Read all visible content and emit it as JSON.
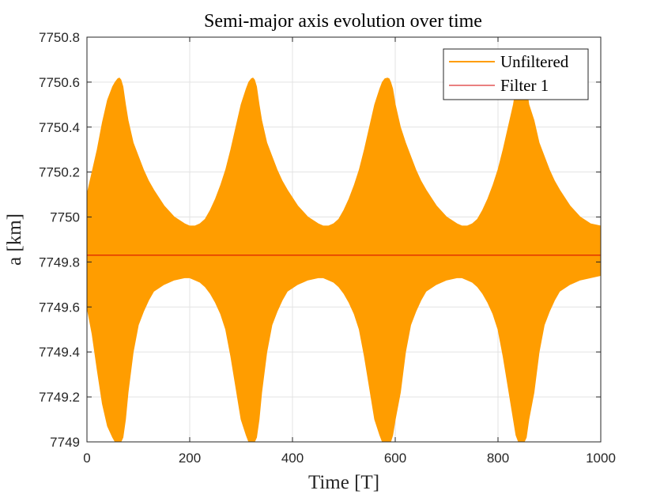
{
  "colors": {
    "unfiltered": "#FF9D00",
    "filter1": "#D40000",
    "grid": "#E3E3E3",
    "axis": "#262626"
  },
  "chart_data": {
    "type": "line",
    "title": "Semi-major axis evolution over time",
    "xlabel": "Time [T]",
    "ylabel": "a [km]",
    "xlim": [
      0,
      1000
    ],
    "ylim": [
      7749,
      7750.8
    ],
    "xticks": [
      0,
      200,
      400,
      600,
      800,
      1000
    ],
    "xtick_labels": [
      "0",
      "200",
      "400",
      "600",
      "800",
      "1000"
    ],
    "yticks": [
      7749,
      7749.2,
      7749.4,
      7749.6,
      7749.8,
      7750,
      7750.2,
      7750.4,
      7750.6,
      7750.8
    ],
    "ytick_labels": [
      "7749",
      "7749.2",
      "7749.4",
      "7749.6",
      "7749.8",
      "7750",
      "7750.2",
      "7750.4",
      "7750.6",
      "7750.8"
    ],
    "grid": true,
    "legend_position": "top-right",
    "series": [
      {
        "name": "Unfiltered",
        "style": "band",
        "x": [
          0,
          10,
          20,
          30,
          40,
          50,
          55,
          60,
          63,
          66,
          70,
          75,
          80,
          90,
          100,
          110,
          120,
          130,
          150,
          170,
          190,
          200,
          210,
          220,
          230,
          240,
          250,
          260,
          270,
          280,
          290,
          300,
          310,
          315,
          320,
          323,
          326,
          330,
          335,
          340,
          350,
          360,
          370,
          380,
          390,
          410,
          430,
          450,
          460,
          470,
          480,
          490,
          500,
          510,
          520,
          530,
          540,
          550,
          560,
          570,
          575,
          580,
          585,
          588,
          591,
          595,
          600,
          610,
          620,
          630,
          640,
          650,
          660,
          680,
          700,
          720,
          730,
          740,
          750,
          760,
          770,
          780,
          790,
          800,
          810,
          820,
          830,
          835,
          840,
          845,
          848,
          851,
          855,
          860,
          870,
          880,
          890,
          900,
          910,
          920,
          940,
          960,
          980,
          1000
        ],
        "upper": [
          7750.1,
          7750.2,
          7750.3,
          7750.42,
          7750.52,
          7750.58,
          7750.6,
          7750.615,
          7750.618,
          7750.61,
          7750.58,
          7750.5,
          7750.43,
          7750.33,
          7750.27,
          7750.21,
          7750.16,
          7750.12,
          7750.05,
          7750,
          7749.97,
          7749.96,
          7749.96,
          7749.97,
          7749.99,
          7750.03,
          7750.08,
          7750.14,
          7750.21,
          7750.3,
          7750.4,
          7750.5,
          7750.57,
          7750.6,
          7750.615,
          7750.618,
          7750.61,
          7750.58,
          7750.5,
          7750.43,
          7750.33,
          7750.27,
          7750.21,
          7750.16,
          7750.12,
          7750.05,
          7750,
          7749.97,
          7749.96,
          7749.96,
          7749.97,
          7749.99,
          7750.03,
          7750.08,
          7750.14,
          7750.21,
          7750.3,
          7750.4,
          7750.5,
          7750.57,
          7750.6,
          7750.615,
          7750.618,
          7750.615,
          7750.6,
          7750.57,
          7750.5,
          7750.4,
          7750.33,
          7750.27,
          7750.21,
          7750.16,
          7750.12,
          7750.05,
          7750,
          7749.97,
          7749.96,
          7749.96,
          7749.97,
          7749.99,
          7750.03,
          7750.08,
          7750.14,
          7750.21,
          7750.3,
          7750.4,
          7750.5,
          7750.57,
          7750.6,
          7750.615,
          7750.618,
          7750.61,
          7750.58,
          7750.5,
          7750.43,
          7750.33,
          7750.27,
          7750.21,
          7750.16,
          7750.12,
          7750.05,
          7750,
          7749.97,
          7749.96
        ],
        "lower": [
          7749.6,
          7749.48,
          7749.32,
          7749.17,
          7749.07,
          7749.02,
          7749.0,
          7748.98,
          7748.985,
          7748.99,
          7749.02,
          7749.1,
          7749.22,
          7749.4,
          7749.52,
          7749.58,
          7749.63,
          7749.67,
          7749.7,
          7749.72,
          7749.73,
          7749.73,
          7749.72,
          7749.71,
          7749.69,
          7749.66,
          7749.62,
          7749.57,
          7749.5,
          7749.38,
          7749.24,
          7749.1,
          7749.03,
          7749.0,
          7748.98,
          7748.985,
          7748.99,
          7749.02,
          7749.1,
          7749.22,
          7749.4,
          7749.52,
          7749.58,
          7749.63,
          7749.67,
          7749.7,
          7749.72,
          7749.73,
          7749.73,
          7749.72,
          7749.71,
          7749.69,
          7749.66,
          7749.62,
          7749.57,
          7749.5,
          7749.38,
          7749.24,
          7749.1,
          7749.03,
          7749.0,
          7748.98,
          7748.985,
          7748.98,
          7749.0,
          7749.03,
          7749.1,
          7749.22,
          7749.4,
          7749.52,
          7749.58,
          7749.63,
          7749.67,
          7749.7,
          7749.72,
          7749.73,
          7749.73,
          7749.72,
          7749.71,
          7749.69,
          7749.66,
          7749.62,
          7749.57,
          7749.5,
          7749.38,
          7749.24,
          7749.1,
          7749.03,
          7749.0,
          7748.98,
          7748.985,
          7748.99,
          7749.02,
          7749.1,
          7749.22,
          7749.4,
          7749.52,
          7749.58,
          7749.63,
          7749.67,
          7749.7,
          7749.72,
          7749.73,
          7749.74
        ]
      },
      {
        "name": "Filter 1",
        "style": "line",
        "x": [
          0,
          1000
        ],
        "y": [
          7749.83,
          7749.83
        ]
      }
    ]
  }
}
